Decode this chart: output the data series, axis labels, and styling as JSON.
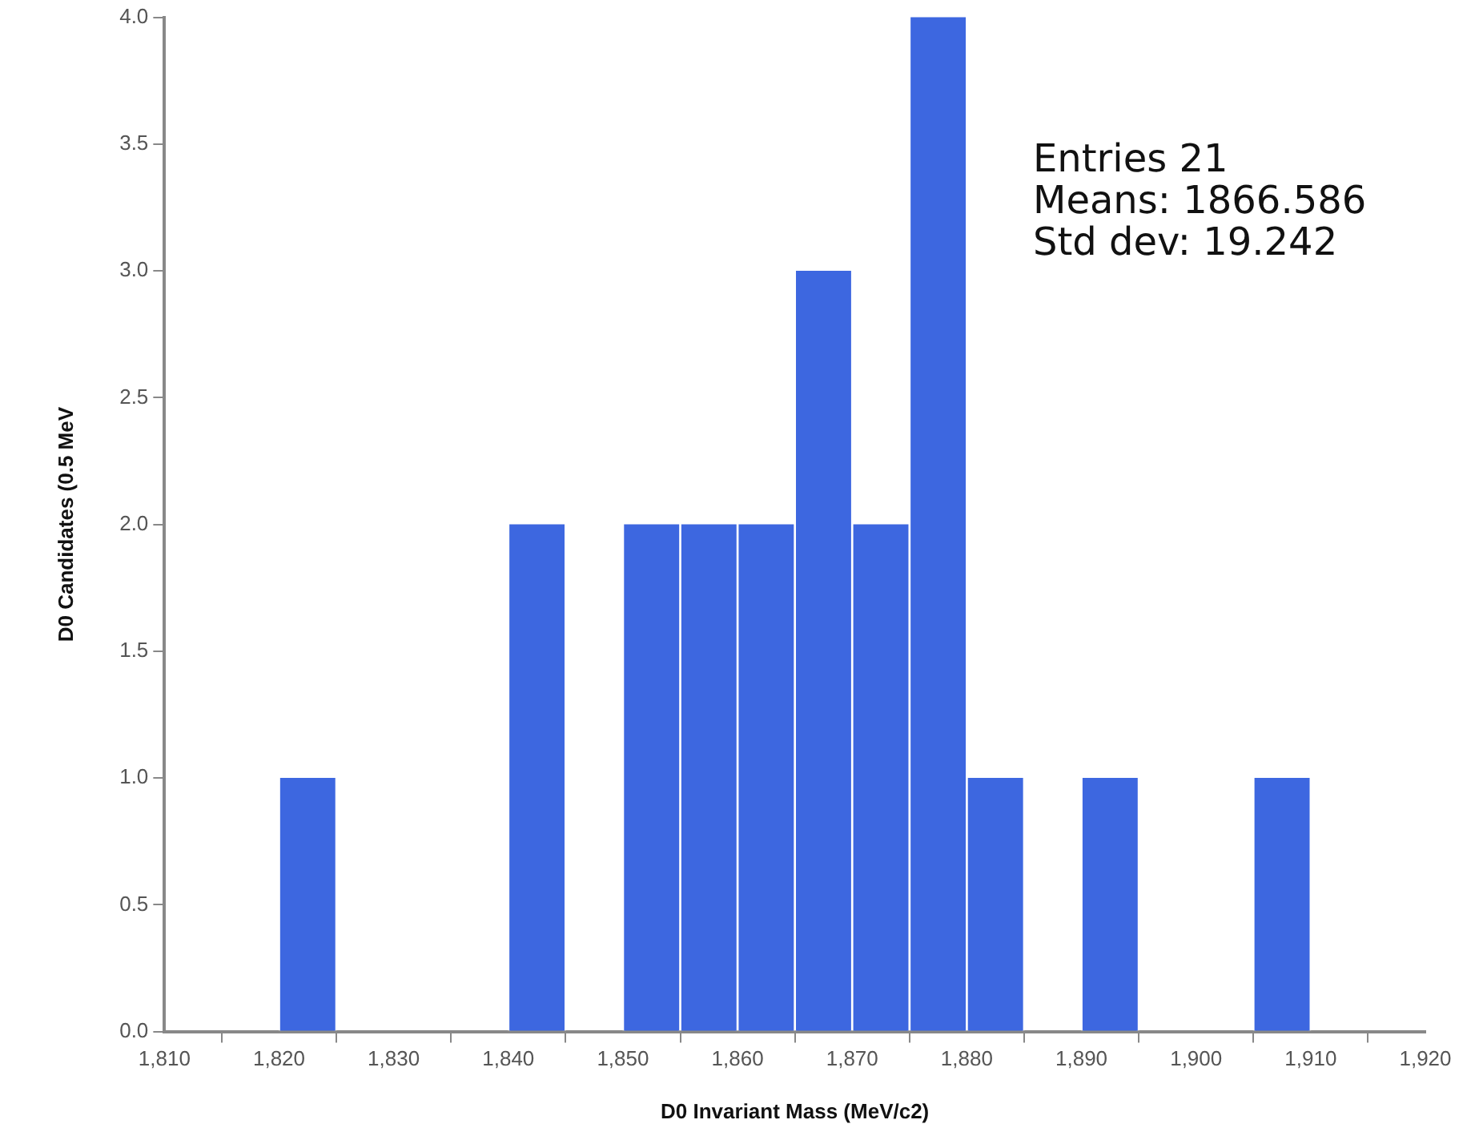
{
  "chart_data": {
    "type": "histogram",
    "xlabel": "D0 Invariant Mass (MeV/c2)",
    "ylabel": "D0 Candidates (0.5 MeV",
    "bins": [
      1820,
      1825,
      1830,
      1835,
      1840,
      1845,
      1850,
      1855,
      1860,
      1865,
      1870,
      1875,
      1880,
      1885,
      1890,
      1895,
      1900,
      1905,
      1910
    ],
    "values": [
      1,
      0,
      0,
      0,
      2,
      0,
      2,
      2,
      2,
      3,
      2,
      4,
      1,
      0,
      1,
      0,
      0,
      1
    ],
    "color": "#3d67e0",
    "xlim": [
      1810,
      1920
    ],
    "xticks": [
      {
        "value": 1810,
        "label": "1,810"
      },
      {
        "value": 1820,
        "label": "1,820"
      },
      {
        "value": 1830,
        "label": "1,830"
      },
      {
        "value": 1840,
        "label": "1,840"
      },
      {
        "value": 1850,
        "label": "1,850"
      },
      {
        "value": 1860,
        "label": "1,860"
      },
      {
        "value": 1870,
        "label": "1,870"
      },
      {
        "value": 1880,
        "label": "1,880"
      },
      {
        "value": 1890,
        "label": "1,890"
      },
      {
        "value": 1900,
        "label": "1,900"
      },
      {
        "value": 1910,
        "label": "1,910"
      },
      {
        "value": 1920,
        "label": "1,920"
      }
    ],
    "ylim": [
      0,
      4
    ],
    "yticks": [
      {
        "value": 0,
        "label": "0.0"
      },
      {
        "value": 0.5,
        "label": "0.5"
      },
      {
        "value": 1,
        "label": "1.0"
      },
      {
        "value": 1.5,
        "label": "1.5"
      },
      {
        "value": 2,
        "label": "2.0"
      },
      {
        "value": 2.5,
        "label": "2.5"
      },
      {
        "value": 3,
        "label": "3.0"
      },
      {
        "value": 3.5,
        "label": "3.5"
      },
      {
        "value": 4,
        "label": "4.0"
      }
    ],
    "annotations": [
      "Entries 21",
      "Means: 1866.586",
      "Std dev: 19.242"
    ],
    "grid": false,
    "legend": false
  }
}
